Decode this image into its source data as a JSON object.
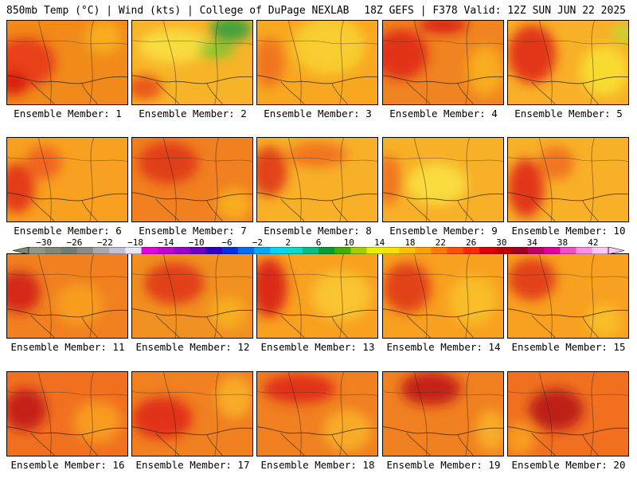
{
  "header": {
    "left": "850mb Temp (°C) | Wind (kts) | College of DuPage NEXLAB",
    "right": "18Z GEFS | F378 Valid: 12Z SUN JUN 22 2025"
  },
  "colorbar": {
    "labels": [
      "−30",
      "−26",
      "−22",
      "−18",
      "−14",
      "−10",
      "−6",
      "−2",
      "2",
      "6",
      "10",
      "14",
      "18",
      "22",
      "26",
      "30",
      "34",
      "38",
      "42"
    ],
    "colors": [
      "#8c9a8c",
      "#7c8a7c",
      "#6e7e72",
      "#8a8a8a",
      "#a8a8b0",
      "#c0c0d8",
      "#e6e6ff",
      "#e000e0",
      "#c000d0",
      "#9a00c8",
      "#6a00c0",
      "#2a00c0",
      "#0030e0",
      "#0070f0",
      "#00a8ff",
      "#00d8f0",
      "#00e0c0",
      "#00c080",
      "#00a030",
      "#40b000",
      "#a0d000",
      "#e8f000",
      "#ffe000",
      "#ffc000",
      "#ffa000",
      "#ff7800",
      "#ff5000",
      "#ff2800",
      "#e00000",
      "#c00000",
      "#a00020",
      "#c00060",
      "#e000a0",
      "#f050c0",
      "#ff90e0",
      "#ffc8f0"
    ]
  },
  "panels": [
    {
      "label": "Ensemble Member: 1",
      "base": "#f08a1a",
      "blobs": [
        [
          "#e83818",
          0.15,
          0.5,
          0.5,
          0.6
        ],
        [
          "#d81c10",
          0.05,
          0.75,
          0.25,
          0.3
        ],
        [
          "#f8b020",
          0.8,
          0.2,
          0.3,
          0.4
        ]
      ]
    },
    {
      "label": "Ensemble Member: 2",
      "base": "#f8b428",
      "blobs": [
        [
          "#f8e040",
          0.35,
          0.3,
          0.6,
          0.4
        ],
        [
          "#30a040",
          0.82,
          0.1,
          0.35,
          0.3
        ],
        [
          "#7cc830",
          0.7,
          0.35,
          0.3,
          0.2
        ],
        [
          "#e85018",
          0.1,
          0.8,
          0.3,
          0.3
        ]
      ]
    },
    {
      "label": "Ensemble Member: 3",
      "base": "#f8a820",
      "blobs": [
        [
          "#f8d030",
          0.6,
          0.3,
          0.6,
          0.7
        ],
        [
          "#f07020",
          0.1,
          0.5,
          0.25,
          0.6
        ]
      ]
    },
    {
      "label": "Ensemble Member: 4",
      "base": "#f08420",
      "blobs": [
        [
          "#e02818",
          0.15,
          0.4,
          0.45,
          0.6
        ],
        [
          "#d81818",
          0.5,
          0.05,
          0.4,
          0.2
        ],
        [
          "#f8b020",
          0.85,
          0.6,
          0.3,
          0.6
        ]
      ]
    },
    {
      "label": "Ensemble Member: 5",
      "base": "#f8b028",
      "blobs": [
        [
          "#e02818",
          0.2,
          0.4,
          0.4,
          0.7
        ],
        [
          "#f8e030",
          0.8,
          0.6,
          0.4,
          0.6
        ],
        [
          "#c0d830",
          0.95,
          0.15,
          0.15,
          0.25
        ]
      ]
    },
    {
      "label": "Ensemble Member: 6",
      "base": "#f8a020",
      "blobs": [
        [
          "#e03018",
          0.08,
          0.6,
          0.3,
          0.6
        ],
        [
          "#f06020",
          0.3,
          0.3,
          0.3,
          0.4
        ]
      ]
    },
    {
      "label": "Ensemble Member: 7",
      "base": "#f08020",
      "blobs": [
        [
          "#e03818",
          0.3,
          0.3,
          0.5,
          0.5
        ],
        [
          "#f8b020",
          0.85,
          0.8,
          0.3,
          0.4
        ]
      ]
    },
    {
      "label": "Ensemble Member: 8",
      "base": "#f8b028",
      "blobs": [
        [
          "#e03818",
          0.1,
          0.4,
          0.3,
          0.6
        ],
        [
          "#f07020",
          0.5,
          0.2,
          0.5,
          0.3
        ]
      ]
    },
    {
      "label": "Ensemble Member: 9",
      "base": "#f8b028",
      "blobs": [
        [
          "#f8e040",
          0.45,
          0.55,
          0.5,
          0.5
        ],
        [
          "#f07020",
          0.05,
          0.5,
          0.2,
          0.6
        ]
      ]
    },
    {
      "label": "Ensemble Member: 10",
      "base": "#f8b028",
      "blobs": [
        [
          "#e02818",
          0.15,
          0.6,
          0.3,
          0.7
        ],
        [
          "#f07020",
          0.4,
          0.3,
          0.3,
          0.4
        ]
      ]
    },
    {
      "label": "Ensemble Member: 11",
      "base": "#f08020",
      "blobs": [
        [
          "#d02018",
          0.1,
          0.45,
          0.35,
          0.5
        ],
        [
          "#f8a020",
          0.6,
          0.6,
          0.4,
          0.5
        ]
      ]
    },
    {
      "label": "Ensemble Member: 12",
      "base": "#f09020",
      "blobs": [
        [
          "#e03818",
          0.35,
          0.35,
          0.5,
          0.5
        ],
        [
          "#f8b020",
          0.8,
          0.7,
          0.3,
          0.4
        ]
      ]
    },
    {
      "label": "Ensemble Member: 13",
      "base": "#f8a020",
      "blobs": [
        [
          "#d82018",
          0.1,
          0.4,
          0.3,
          0.7
        ],
        [
          "#f8c830",
          0.7,
          0.5,
          0.5,
          0.6
        ]
      ]
    },
    {
      "label": "Ensemble Member: 14",
      "base": "#f8a020",
      "blobs": [
        [
          "#e03818",
          0.2,
          0.4,
          0.4,
          0.6
        ],
        [
          "#f8c028",
          0.75,
          0.55,
          0.4,
          0.6
        ]
      ]
    },
    {
      "label": "Ensemble Member: 15",
      "base": "#f8a020",
      "blobs": [
        [
          "#e03818",
          0.2,
          0.3,
          0.4,
          0.5
        ],
        [
          "#f8c028",
          0.8,
          0.8,
          0.3,
          0.4
        ]
      ]
    },
    {
      "label": "Ensemble Member: 16",
      "base": "#f07020",
      "blobs": [
        [
          "#c01818",
          0.15,
          0.45,
          0.35,
          0.5
        ],
        [
          "#f8a020",
          0.75,
          0.6,
          0.4,
          0.5
        ]
      ]
    },
    {
      "label": "Ensemble Member: 17",
      "base": "#f08020",
      "blobs": [
        [
          "#e02818",
          0.25,
          0.55,
          0.5,
          0.5
        ],
        [
          "#f8b028",
          0.85,
          0.3,
          0.3,
          0.5
        ]
      ]
    },
    {
      "label": "Ensemble Member: 18",
      "base": "#f08020",
      "blobs": [
        [
          "#e02818",
          0.35,
          0.2,
          0.6,
          0.35
        ],
        [
          "#f8b028",
          0.75,
          0.7,
          0.4,
          0.5
        ]
      ]
    },
    {
      "label": "Ensemble Member: 19",
      "base": "#f08020",
      "blobs": [
        [
          "#c01818",
          0.4,
          0.2,
          0.5,
          0.4
        ],
        [
          "#f8b028",
          0.9,
          0.7,
          0.25,
          0.5
        ]
      ]
    },
    {
      "label": "Ensemble Member: 20",
      "base": "#f07020",
      "blobs": [
        [
          "#b81818",
          0.4,
          0.45,
          0.45,
          0.5
        ],
        [
          "#f8a020",
          0.1,
          0.8,
          0.25,
          0.4
        ]
      ]
    }
  ]
}
